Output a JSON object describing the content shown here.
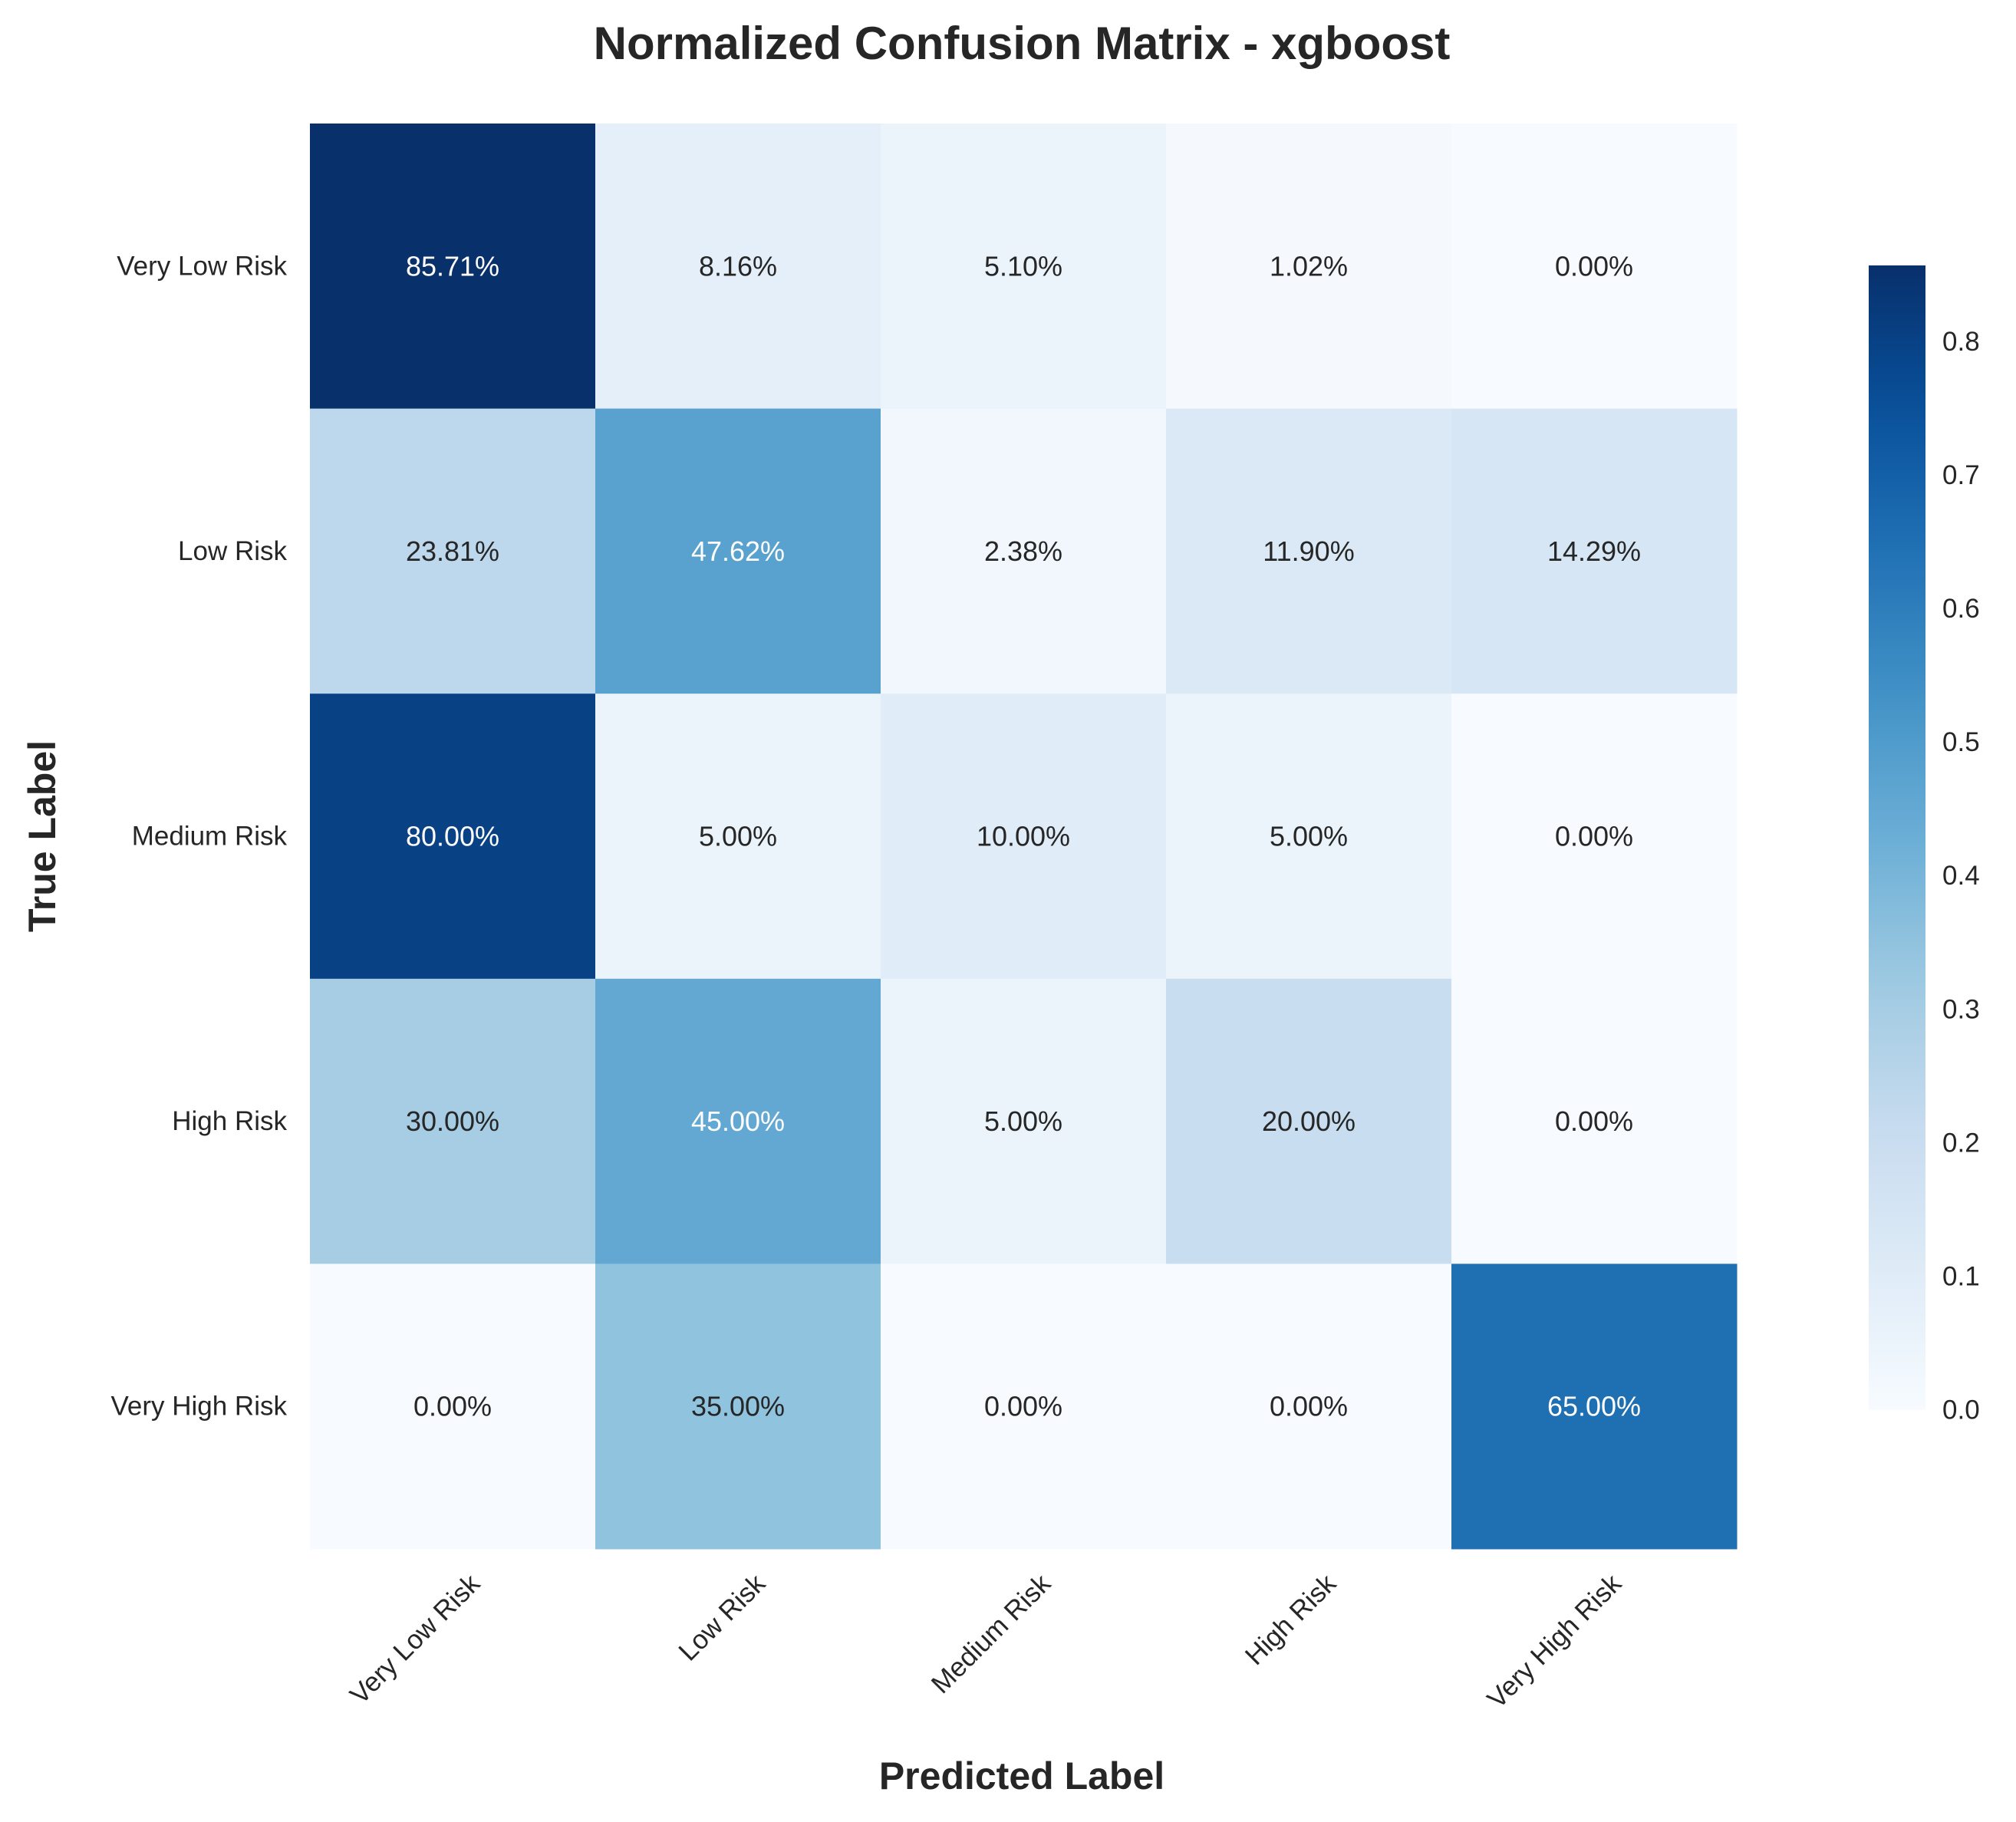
{
  "chart_data": {
    "type": "heatmap",
    "title": "Normalized Confusion Matrix - xgboost",
    "xlabel": "Predicted Label",
    "ylabel": "True Label",
    "x_categories": [
      "Very Low Risk",
      "Low Risk",
      "Medium Risk",
      "High Risk",
      "Very High Risk"
    ],
    "y_categories": [
      "Very Low Risk",
      "Low Risk",
      "Medium Risk",
      "High Risk",
      "Very High Risk"
    ],
    "values": [
      [
        0.8571,
        0.0816,
        0.051,
        0.0102,
        0.0
      ],
      [
        0.2381,
        0.4762,
        0.0238,
        0.119,
        0.1429
      ],
      [
        0.8,
        0.05,
        0.1,
        0.05,
        0.0
      ],
      [
        0.3,
        0.45,
        0.05,
        0.2,
        0.0
      ],
      [
        0.0,
        0.35,
        0.0,
        0.0,
        0.65
      ]
    ],
    "cell_labels": [
      [
        "85.71%",
        "8.16%",
        "5.10%",
        "1.02%",
        "0.00%"
      ],
      [
        "23.81%",
        "47.62%",
        "2.38%",
        "11.90%",
        "14.29%"
      ],
      [
        "80.00%",
        "5.00%",
        "10.00%",
        "5.00%",
        "0.00%"
      ],
      [
        "30.00%",
        "45.00%",
        "5.00%",
        "20.00%",
        "0.00%"
      ],
      [
        "0.00%",
        "35.00%",
        "0.00%",
        "0.00%",
        "65.00%"
      ]
    ],
    "colorbar": {
      "colormap": "Blues",
      "range": [
        0,
        0.8571
      ],
      "ticks": [
        "0.0",
        "0.1",
        "0.2",
        "0.3",
        "0.4",
        "0.5",
        "0.6",
        "0.7",
        "0.8"
      ]
    },
    "grid": false,
    "legend": "colorbar-right"
  }
}
